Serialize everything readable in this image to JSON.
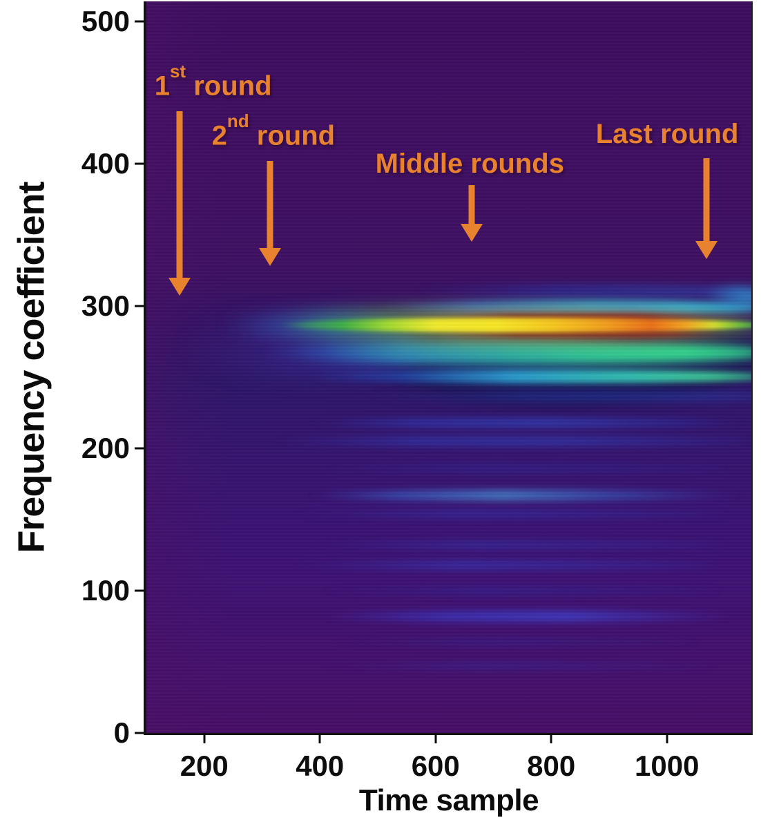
{
  "chart_data": {
    "type": "heatmap",
    "title": "",
    "xlabel": "Time sample",
    "ylabel": "Frequency coefficient",
    "xlim": [
      100,
      1146
    ],
    "ylim": [
      0,
      514
    ],
    "x_ticks": [
      200,
      400,
      600,
      800,
      1000
    ],
    "y_ticks": [
      0,
      100,
      200,
      300,
      400,
      500
    ],
    "grid": false,
    "legend": null,
    "description": "Spectrogram-style heatmap on a dark purple background. A dominant hot band (green-yellow-orange-red) runs horizontally near frequency coefficient ~287 starting around time sample 400; secondary cyan/teal bands sit near coefficients ~299, ~267 and ~250, with many faint blue harmonics below (~218, ~205, ~167, ~132, ~118, ~82). Orange arrows annotate the 1st, 2nd, middle and last rounds across time.",
    "style": {
      "annotation_color": "#e8822f",
      "axis_color": "#131313",
      "tick_label_color": "#0d0d0d",
      "bg_vertical": [
        [
          0,
          "#3c0d5e"
        ],
        [
          18,
          "#3f0e61"
        ],
        [
          36,
          "#3e1062"
        ],
        [
          44,
          "#331264"
        ],
        [
          52,
          "#2d1668"
        ],
        [
          60,
          "#34156e"
        ],
        [
          70,
          "#3a1372"
        ],
        [
          78,
          "#3d1273"
        ],
        [
          86,
          "#41116f"
        ],
        [
          93,
          "#45106b"
        ],
        [
          100,
          "#480e66"
        ]
      ],
      "left_fade": [
        [
          0,
          "rgba(74,16,102,0.55)"
        ],
        [
          5,
          "rgba(74,16,102,0.30)"
        ],
        [
          14,
          "rgba(74,16,102,0)"
        ]
      ]
    },
    "annotations": [
      {
        "label": "1st round",
        "prefix": "1",
        "sup": "st",
        "rest": " round",
        "text": {
          "t": 114,
          "f": 466
        },
        "arrow": {
          "t": 157,
          "f_from": 437,
          "f_to": 307
        }
      },
      {
        "label": "2nd round",
        "prefix": "2",
        "sup": "nd",
        "rest": " round",
        "text": {
          "t": 213,
          "f": 431
        },
        "arrow": {
          "t": 314,
          "f_from": 402,
          "f_to": 328
        }
      },
      {
        "label": "Middle rounds",
        "prefix": "Middle rounds",
        "sup": "",
        "rest": "",
        "text": {
          "t": 496,
          "f": 410
        },
        "arrow": {
          "t": 663,
          "f_from": 385,
          "f_to": 345
        }
      },
      {
        "label": "Last round",
        "prefix": "Last round",
        "sup": "",
        "rest": "",
        "text": {
          "t": 877,
          "f": 431
        },
        "arrow": {
          "t": 1068,
          "f_from": 404,
          "f_to": 333
        }
      }
    ],
    "bands": [
      {
        "name": "navy-underlay",
        "f": 266,
        "hw": 36,
        "t0": 470,
        "t1": 1170,
        "blur": 10,
        "stops": [
          [
            0,
            "transparent"
          ],
          [
            18,
            "rgba(14,14,58,0.50)"
          ],
          [
            60,
            "rgba(13,13,62,0.55)"
          ],
          [
            100,
            "rgba(18,14,70,0.55)"
          ]
        ]
      },
      {
        "name": "left-blue-haze",
        "f": 272,
        "hw": 22,
        "t0": 160,
        "t1": 575,
        "blur": 14,
        "stops": [
          [
            0,
            "transparent"
          ],
          [
            45,
            "rgba(58,52,160,0.35)"
          ],
          [
            100,
            "rgba(42,70,190,0.55)"
          ]
        ]
      },
      {
        "name": "faint-band-310",
        "f": 310,
        "hw": 5,
        "t0": 560,
        "t1": 1170,
        "blur": 6,
        "stops": [
          [
            0,
            "transparent"
          ],
          [
            40,
            "rgba(35,70,190,0.40)"
          ],
          [
            85,
            "rgba(40,90,200,0.45)"
          ],
          [
            100,
            "rgba(45,110,210,0.50)"
          ]
        ]
      },
      {
        "name": "cyan-band-299",
        "f": 299,
        "hw": 5.5,
        "t0": 500,
        "t1": 1170,
        "blur": 5,
        "stops": [
          [
            0,
            "transparent"
          ],
          [
            25,
            "rgba(30,95,205,0.85)"
          ],
          [
            55,
            "#2499cf"
          ],
          [
            80,
            "#2ba8d6"
          ],
          [
            100,
            "#2f9ed2"
          ]
        ]
      },
      {
        "name": "corner-cyan-306",
        "f": 306,
        "hw": 7,
        "t0": 1060,
        "t1": 1170,
        "blur": 8,
        "stops": [
          [
            0,
            "transparent"
          ],
          [
            60,
            "rgba(45,150,215,0.70)"
          ],
          [
            100,
            "rgba(50,160,220,0.80)"
          ]
        ]
      },
      {
        "name": "teal-glow-267",
        "f": 267,
        "hw": 12,
        "t0": 340,
        "t1": 1170,
        "blur": 10,
        "stops": [
          [
            0,
            "transparent"
          ],
          [
            30,
            "rgba(42,130,180,0.35)"
          ],
          [
            70,
            "rgba(46,190,150,0.35)"
          ],
          [
            100,
            "rgba(46,190,150,0.40)"
          ]
        ]
      },
      {
        "name": "teal-band-267",
        "f": 267,
        "hw": 7.5,
        "t0": 300,
        "t1": 1170,
        "blur": 6,
        "stops": [
          [
            0,
            "transparent"
          ],
          [
            12,
            "rgba(45,90,190,0.50)"
          ],
          [
            28,
            "#2f86b4"
          ],
          [
            48,
            "#2aa9a4"
          ],
          [
            66,
            "#2fc795"
          ],
          [
            84,
            "#33d490"
          ],
          [
            100,
            "#2cc287"
          ]
        ]
      },
      {
        "name": "cyan-band-250",
        "f": 250.5,
        "hw": 5,
        "t0": 380,
        "t1": 1170,
        "blur": 5,
        "stops": [
          [
            0,
            "transparent"
          ],
          [
            20,
            "rgba(35,85,195,0.60)"
          ],
          [
            45,
            "#2a9ccc"
          ],
          [
            70,
            "#32c2b2"
          ],
          [
            88,
            "#3fd49a"
          ],
          [
            100,
            "#35c98f"
          ]
        ]
      },
      {
        "name": "faint-band-236",
        "f": 236.5,
        "hw": 4,
        "t0": 480,
        "t1": 1170,
        "blur": 6,
        "stops": [
          [
            0,
            "transparent"
          ],
          [
            40,
            "rgba(35,70,185,0.40)"
          ],
          [
            100,
            "rgba(40,80,195,0.45)"
          ]
        ]
      },
      {
        "name": "main-band-glow",
        "f": 286.5,
        "hw": 13,
        "t0": 230,
        "t1": 1170,
        "blur": 12,
        "stops": [
          [
            0,
            "transparent"
          ],
          [
            10,
            "rgba(45,110,190,0.40)"
          ],
          [
            20,
            "rgba(60,190,150,0.50)"
          ],
          [
            30,
            "rgba(110,220,80,0.50)"
          ],
          [
            45,
            "rgba(245,230,50,0.45)"
          ],
          [
            62,
            "rgba(245,180,40,0.50)"
          ],
          [
            76,
            "rgba(235,120,30,0.50)"
          ],
          [
            85,
            "rgba(240,190,40,0.45)"
          ],
          [
            93,
            "rgba(150,215,70,0.50)"
          ],
          [
            100,
            "rgba(90,200,80,0.50)"
          ]
        ]
      },
      {
        "name": "red-edge-top",
        "f": 292.5,
        "hw": 2.2,
        "t0": 620,
        "t1": 1080,
        "blur": 4,
        "stops": [
          [
            0,
            "transparent"
          ],
          [
            25,
            "rgba(135,25,15,0.75)"
          ],
          [
            75,
            "rgba(150,35,15,0.75)"
          ],
          [
            100,
            "transparent"
          ]
        ]
      },
      {
        "name": "red-edge-bottom",
        "f": 280.5,
        "hw": 2.2,
        "t0": 620,
        "t1": 1100,
        "blur": 4,
        "stops": [
          [
            0,
            "transparent"
          ],
          [
            25,
            "rgba(140,30,15,0.70)"
          ],
          [
            80,
            "rgba(160,45,15,0.70)"
          ],
          [
            100,
            "transparent"
          ]
        ]
      },
      {
        "name": "main-band-core",
        "f": 286.5,
        "hw": 5.2,
        "t0": 330,
        "t1": 1165,
        "blur": 3,
        "stops": [
          [
            0,
            "transparent"
          ],
          [
            6,
            "rgba(60,170,90,0.60)"
          ],
          [
            13,
            "#3fae46"
          ],
          [
            22,
            "#9ed832"
          ],
          [
            32,
            "#eee82e"
          ],
          [
            45,
            "#f6e426"
          ],
          [
            57,
            "#f4c51f"
          ],
          [
            68,
            "#f09c1e"
          ],
          [
            77,
            "#ea701a"
          ],
          [
            84,
            "#f2a321"
          ],
          [
            90,
            "#d4e02e"
          ],
          [
            96,
            "#68c43e"
          ],
          [
            100,
            "#42b04a"
          ]
        ]
      },
      {
        "name": "low-band-218",
        "f": 218,
        "hw": 3.5,
        "t0": 380,
        "t1": 1140,
        "blur": 5,
        "stops": [
          [
            0,
            "transparent"
          ],
          [
            25,
            "rgba(45,70,205,0.50)"
          ],
          [
            55,
            "rgba(50,80,210,0.55)"
          ],
          [
            85,
            "rgba(40,60,190,0.35)"
          ],
          [
            100,
            "transparent"
          ]
        ]
      },
      {
        "name": "low-band-205",
        "f": 205,
        "hw": 3.5,
        "t0": 320,
        "t1": 1140,
        "blur": 5,
        "stops": [
          [
            0,
            "transparent"
          ],
          [
            30,
            "rgba(45,70,200,0.45)"
          ],
          [
            60,
            "rgba(48,75,205,0.45)"
          ],
          [
            100,
            "rgba(40,60,185,0.20)"
          ]
        ]
      },
      {
        "name": "low-band-186",
        "f": 186,
        "hw": 3,
        "t0": 400,
        "t1": 1100,
        "blur": 5,
        "stops": [
          [
            0,
            "transparent"
          ],
          [
            40,
            "rgba(40,55,175,0.30)"
          ],
          [
            100,
            "rgba(40,55,175,0.15)"
          ]
        ]
      },
      {
        "name": "low-band-167",
        "f": 167,
        "hw": 4,
        "t0": 380,
        "t1": 1130,
        "blur": 5,
        "stops": [
          [
            0,
            "transparent"
          ],
          [
            20,
            "rgba(55,110,215,0.55)"
          ],
          [
            45,
            "rgba(70,150,215,0.70)"
          ],
          [
            70,
            "rgba(55,110,210,0.50)"
          ],
          [
            100,
            "transparent"
          ]
        ]
      },
      {
        "name": "low-band-154",
        "f": 154,
        "hw": 3,
        "t0": 350,
        "t1": 1100,
        "blur": 5,
        "stops": [
          [
            0,
            "transparent"
          ],
          [
            40,
            "rgba(45,65,195,0.40)"
          ],
          [
            100,
            "rgba(40,60,185,0.18)"
          ]
        ]
      },
      {
        "name": "low-band-132",
        "f": 132,
        "hw": 3,
        "t0": 380,
        "t1": 1100,
        "blur": 5,
        "stops": [
          [
            0,
            "transparent"
          ],
          [
            40,
            "rgba(45,65,195,0.40)"
          ],
          [
            100,
            "rgba(40,60,185,0.18)"
          ]
        ]
      },
      {
        "name": "low-band-118",
        "f": 118,
        "hw": 3.5,
        "t0": 350,
        "t1": 1080,
        "blur": 5,
        "stops": [
          [
            0,
            "transparent"
          ],
          [
            40,
            "rgba(50,70,205,0.45)"
          ],
          [
            100,
            "rgba(45,60,190,0.20)"
          ]
        ]
      },
      {
        "name": "low-band-100",
        "f": 100,
        "hw": 3,
        "t0": 400,
        "t1": 1090,
        "blur": 5,
        "stops": [
          [
            0,
            "transparent"
          ],
          [
            40,
            "rgba(40,50,170,0.35)"
          ],
          [
            100,
            "rgba(40,50,170,0.15)"
          ]
        ]
      },
      {
        "name": "low-band-82",
        "f": 82,
        "hw": 4,
        "t0": 400,
        "t1": 1120,
        "blur": 5,
        "stops": [
          [
            0,
            "transparent"
          ],
          [
            30,
            "rgba(55,70,220,0.55)"
          ],
          [
            60,
            "rgba(60,80,230,0.60)"
          ],
          [
            100,
            "transparent"
          ]
        ]
      },
      {
        "name": "low-band-64",
        "f": 64,
        "hw": 3,
        "t0": 420,
        "t1": 1050,
        "blur": 5,
        "stops": [
          [
            0,
            "transparent"
          ],
          [
            40,
            "rgba(40,45,155,0.30)"
          ],
          [
            100,
            "rgba(40,45,155,0.12)"
          ]
        ]
      },
      {
        "name": "low-band-47",
        "f": 47,
        "hw": 3,
        "t0": 400,
        "t1": 1080,
        "blur": 5,
        "stops": [
          [
            0,
            "transparent"
          ],
          [
            40,
            "rgba(45,50,170,0.32)"
          ],
          [
            100,
            "rgba(45,50,170,0.12)"
          ]
        ]
      }
    ]
  }
}
